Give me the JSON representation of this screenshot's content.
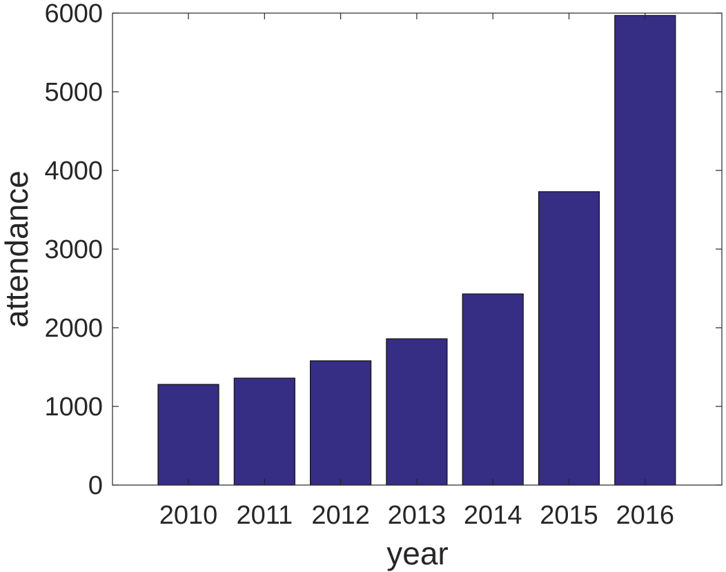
{
  "chart_data": {
    "type": "bar",
    "title": "",
    "xlabel": "year",
    "ylabel": "attendance",
    "categories": [
      "2010",
      "2011",
      "2012",
      "2013",
      "2014",
      "2015",
      "2016"
    ],
    "values": [
      1280,
      1360,
      1580,
      1860,
      2430,
      3730,
      5970
    ],
    "ylim": [
      0,
      6000
    ],
    "yticks": [
      0,
      1000,
      2000,
      3000,
      4000,
      5000,
      6000
    ],
    "grid": false,
    "legend": "none",
    "bar_color": "#362d84"
  }
}
